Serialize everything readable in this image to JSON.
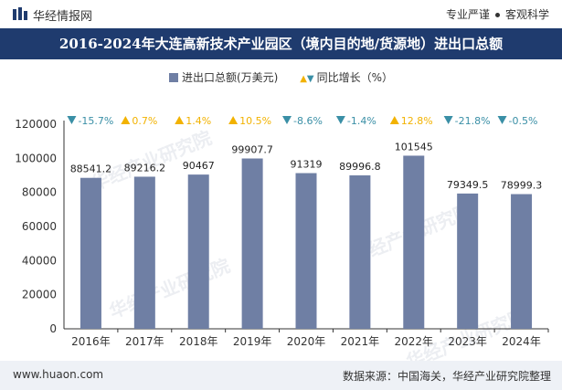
{
  "header": {
    "brand": "华经情报网",
    "links": [
      "专业严谨",
      "客观科学"
    ]
  },
  "title": "2016-2024年大连高新技术产业园区（境内目的地/货源地）进出口总额",
  "legend": {
    "bar_label": "进出口总额(万美元)",
    "growth_label": "同比增长（%）"
  },
  "chart_data": {
    "type": "bar",
    "categories": [
      "2016年",
      "2017年",
      "2018年",
      "2019年",
      "2020年",
      "2021年",
      "2022年",
      "2023年",
      "2024年"
    ],
    "series": [
      {
        "name": "进出口总额(万美元)",
        "values": [
          88541.2,
          89216.2,
          90467,
          99907.7,
          91319,
          89996.8,
          101545,
          79349.5,
          78999.3
        ],
        "labels": [
          "88541.2",
          "89216.2",
          "90467",
          "99907.7",
          "91319",
          "89996.8",
          "101545",
          "79349.5",
          "78999.3"
        ]
      },
      {
        "name": "同比增长（%）",
        "values": [
          -15.7,
          0.7,
          1.4,
          10.5,
          -8.6,
          -1.4,
          12.8,
          -21.8,
          -0.5
        ],
        "labels": [
          "-15.7%",
          "0.7%",
          "1.4%",
          "10.5%",
          "-8.6%",
          "-1.4%",
          "12.8%",
          "-21.8%",
          "-0.5%"
        ]
      }
    ],
    "ylim": [
      0,
      120000
    ],
    "yticks": [
      "0",
      "20000",
      "40000",
      "60000",
      "80000",
      "100000",
      "120000"
    ],
    "colors": {
      "bar": "#6f7fa4",
      "up": "#f2b200",
      "down": "#3a8fa6"
    }
  },
  "watermark": "华经产业研究院",
  "footer": {
    "url": "www.huaon.com",
    "source": "数据来源：中国海关，华经产业研究院整理"
  }
}
